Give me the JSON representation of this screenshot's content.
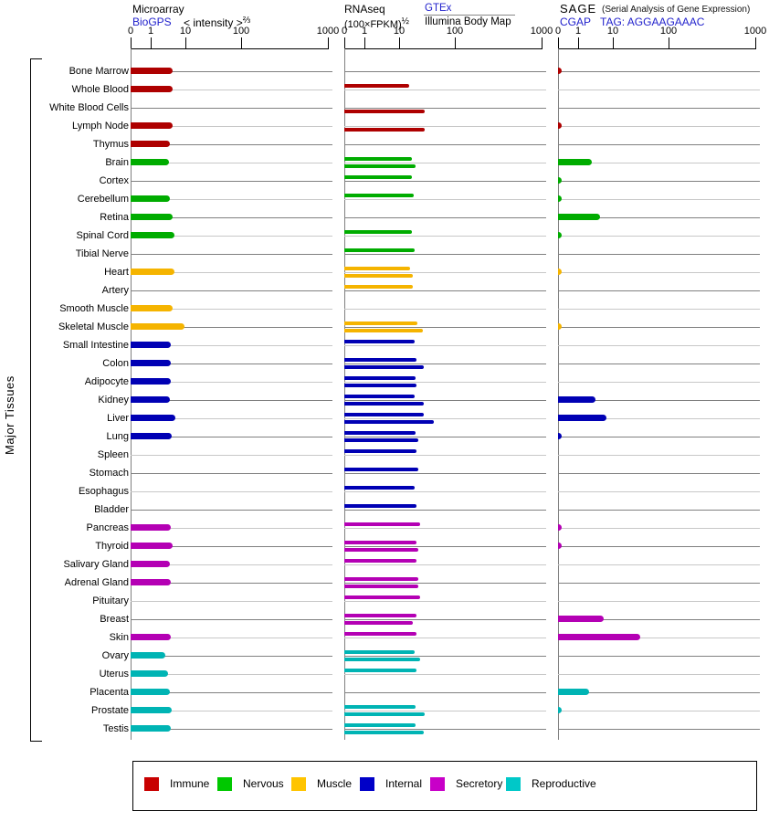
{
  "page": {
    "group_label": "Major Tissues"
  },
  "panels": {
    "microarray": {
      "title": "Microarray",
      "source_link": "BioGPS",
      "scale_label": "< intensity >",
      "scale_sup": "⅔"
    },
    "rnaseq": {
      "title": "RNAseq",
      "scale_label": "(100×FPKM)",
      "scale_sup": "½",
      "source_link_top": "GTEx",
      "source_bottom": "Illumina Body Map"
    },
    "sage": {
      "title": "SAGE",
      "subtitle": "(Serial Analysis of Gene Expression)",
      "source_link": "CGAP",
      "tag_label": "TAG: AGGAAGAAAC"
    }
  },
  "axis_ticks": [
    "0",
    "1",
    "10",
    "100",
    "1000"
  ],
  "legend": {
    "items": [
      {
        "id": "immune",
        "label": "Immune",
        "color": "#C80000",
        "bar_color": "#AE0000"
      },
      {
        "id": "nervous",
        "label": "Nervous",
        "color": "#00C800",
        "bar_color": "#00AC00"
      },
      {
        "id": "muscle",
        "label": "Muscle",
        "color": "#FFC400",
        "bar_color": "#F5B400"
      },
      {
        "id": "internal",
        "label": "Internal",
        "color": "#0000C8",
        "bar_color": "#0000B4"
      },
      {
        "id": "secretory",
        "label": "Secretory",
        "color": "#C800C8",
        "bar_color": "#B400B4"
      },
      {
        "id": "reproductive",
        "label": "Reproductive",
        "color": "#00C8C8",
        "bar_color": "#00B4B4"
      }
    ]
  },
  "colors": {
    "link": "#2222CC",
    "grid_dark": "#808080",
    "grid_light": "#C8C8C8"
  },
  "chart_data": {
    "type": "bar",
    "orientation": "horizontal",
    "x_axis": {
      "ticks": [
        0,
        1,
        10,
        100,
        1000
      ],
      "scale": "power v^0.2",
      "range": [
        0,
        1000
      ]
    },
    "series_layout": {
      "microarray": "single bar per tissue",
      "rnaseq": "two thin bars per tissue: upper = GTEx, lower = Illumina Body Map",
      "sage": "single bar per tissue"
    },
    "tissues": [
      {
        "name": "Bone Marrow",
        "category": "immune",
        "microarray": 4.6,
        "rnaseq_gtex": null,
        "rnaseq_illumina": null,
        "sage": 0.2
      },
      {
        "name": "Whole Blood",
        "category": "immune",
        "microarray": 4.6,
        "rnaseq_gtex": 16,
        "rnaseq_illumina": null,
        "sage": null
      },
      {
        "name": "White Blood Cells",
        "category": "immune",
        "microarray": null,
        "rnaseq_gtex": null,
        "rnaseq_illumina": 32,
        "sage": null
      },
      {
        "name": "Lymph Node",
        "category": "immune",
        "microarray": 4.6,
        "rnaseq_gtex": null,
        "rnaseq_illumina": 32,
        "sage": 0.2
      },
      {
        "name": "Thymus",
        "category": "immune",
        "microarray": 3.9,
        "rnaseq_gtex": null,
        "rnaseq_illumina": null,
        "sage": null
      },
      {
        "name": "Brain",
        "category": "nervous",
        "microarray": 3.8,
        "rnaseq_gtex": 18,
        "rnaseq_illumina": 22,
        "sage": 2.7
      },
      {
        "name": "Cortex",
        "category": "nervous",
        "microarray": null,
        "rnaseq_gtex": 18,
        "rnaseq_illumina": null,
        "sage": 0.2
      },
      {
        "name": "Cerebellum",
        "category": "nervous",
        "microarray": 3.9,
        "rnaseq_gtex": 20,
        "rnaseq_illumina": null,
        "sage": 0.2
      },
      {
        "name": "Retina",
        "category": "nervous",
        "microarray": 4.6,
        "rnaseq_gtex": null,
        "rnaseq_illumina": null,
        "sage": 4.7
      },
      {
        "name": "Spinal Cord",
        "category": "nervous",
        "microarray": 5.1,
        "rnaseq_gtex": 18,
        "rnaseq_illumina": null,
        "sage": 0.2
      },
      {
        "name": "Tibial Nerve",
        "category": "nervous",
        "microarray": null,
        "rnaseq_gtex": 21,
        "rnaseq_illumina": null,
        "sage": null
      },
      {
        "name": "Heart",
        "category": "muscle",
        "microarray": 5.2,
        "rnaseq_gtex": 17,
        "rnaseq_illumina": 19,
        "sage": 0.2
      },
      {
        "name": "Artery",
        "category": "muscle",
        "microarray": null,
        "rnaseq_gtex": 19,
        "rnaseq_illumina": null,
        "sage": null
      },
      {
        "name": "Smooth Muscle",
        "category": "muscle",
        "microarray": 4.6,
        "rnaseq_gtex": null,
        "rnaseq_illumina": null,
        "sage": null
      },
      {
        "name": "Skeletal Muscle",
        "category": "muscle",
        "microarray": 9.2,
        "rnaseq_gtex": 24,
        "rnaseq_illumina": 30,
        "sage": 0.2
      },
      {
        "name": "Small Intestine",
        "category": "internal",
        "microarray": 4.1,
        "rnaseq_gtex": 21,
        "rnaseq_illumina": null,
        "sage": null
      },
      {
        "name": "Colon",
        "category": "internal",
        "microarray": 4.1,
        "rnaseq_gtex": 23,
        "rnaseq_illumina": 31,
        "sage": null
      },
      {
        "name": "Adipocyte",
        "category": "internal",
        "microarray": 4.2,
        "rnaseq_gtex": 22,
        "rnaseq_illumina": 23,
        "sage": null
      },
      {
        "name": "Kidney",
        "category": "internal",
        "microarray": 3.9,
        "rnaseq_gtex": 21,
        "rnaseq_illumina": 31,
        "sage": 3.5
      },
      {
        "name": "Liver",
        "category": "internal",
        "microarray": 5.6,
        "rnaseq_gtex": 31,
        "rnaseq_illumina": 46,
        "sage": 6.8
      },
      {
        "name": "Lung",
        "category": "internal",
        "microarray": 4.3,
        "rnaseq_gtex": 22,
        "rnaseq_illumina": 25,
        "sage": 0.2
      },
      {
        "name": "Spleen",
        "category": "internal",
        "microarray": null,
        "rnaseq_gtex": 23,
        "rnaseq_illumina": null,
        "sage": null
      },
      {
        "name": "Stomach",
        "category": "internal",
        "microarray": null,
        "rnaseq_gtex": 25,
        "rnaseq_illumina": null,
        "sage": null
      },
      {
        "name": "Esophagus",
        "category": "internal",
        "microarray": null,
        "rnaseq_gtex": 21,
        "rnaseq_illumina": null,
        "sage": null
      },
      {
        "name": "Bladder",
        "category": "internal",
        "microarray": null,
        "rnaseq_gtex": 23,
        "rnaseq_illumina": null,
        "sage": null
      },
      {
        "name": "Pancreas",
        "category": "secretory",
        "microarray": 4.1,
        "rnaseq_gtex": 27,
        "rnaseq_illumina": null,
        "sage": 0.2
      },
      {
        "name": "Thyroid",
        "category": "secretory",
        "microarray": 4.7,
        "rnaseq_gtex": 23,
        "rnaseq_illumina": 25,
        "sage": 0.2
      },
      {
        "name": "Salivary Gland",
        "category": "secretory",
        "microarray": 3.9,
        "rnaseq_gtex": 23,
        "rnaseq_illumina": null,
        "sage": null
      },
      {
        "name": "Adrenal Gland",
        "category": "secretory",
        "microarray": 4.2,
        "rnaseq_gtex": 25,
        "rnaseq_illumina": 25,
        "sage": null
      },
      {
        "name": "Pituitary",
        "category": "secretory",
        "microarray": null,
        "rnaseq_gtex": 27,
        "rnaseq_illumina": null,
        "sage": null
      },
      {
        "name": "Breast",
        "category": "secretory",
        "microarray": null,
        "rnaseq_gtex": 23,
        "rnaseq_illumina": 19,
        "sage": 5.8
      },
      {
        "name": "Skin",
        "category": "secretory",
        "microarray": 4.1,
        "rnaseq_gtex": 23,
        "rnaseq_illumina": null,
        "sage": 35
      },
      {
        "name": "Ovary",
        "category": "reproductive",
        "microarray": 3.0,
        "rnaseq_gtex": 21,
        "rnaseq_illumina": 27,
        "sage": null
      },
      {
        "name": "Uterus",
        "category": "reproductive",
        "microarray": 3.6,
        "rnaseq_gtex": 23,
        "rnaseq_illumina": null,
        "sage": null
      },
      {
        "name": "Placenta",
        "category": "reproductive",
        "microarray": 4.0,
        "rnaseq_gtex": null,
        "rnaseq_illumina": null,
        "sage": 2.3
      },
      {
        "name": "Prostate",
        "category": "reproductive",
        "microarray": 4.5,
        "rnaseq_gtex": 22,
        "rnaseq_illumina": 32,
        "sage": 0.2
      },
      {
        "name": "Testis",
        "category": "reproductive",
        "microarray": 4.2,
        "rnaseq_gtex": 22,
        "rnaseq_illumina": 31,
        "sage": null
      }
    ]
  }
}
